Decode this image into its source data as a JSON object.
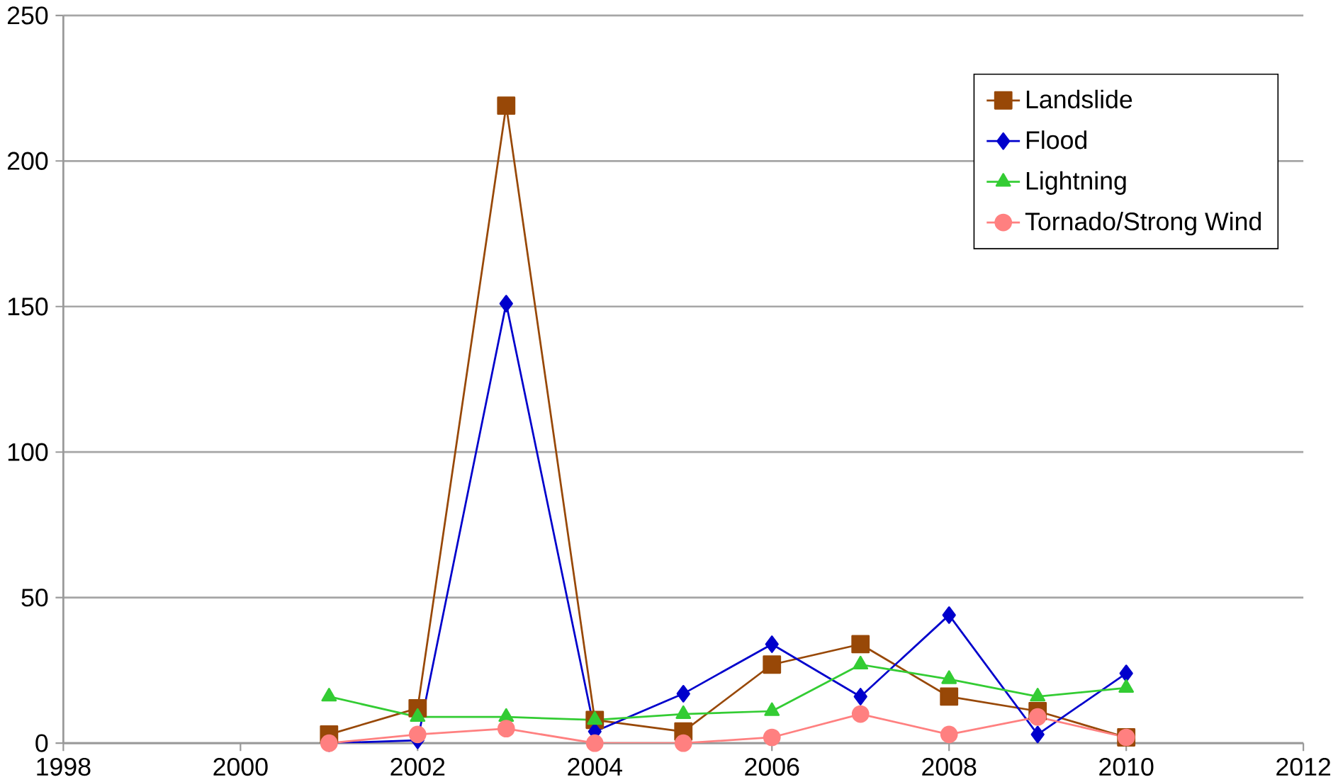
{
  "chart_data": {
    "type": "line",
    "x": [
      2001,
      2002,
      2003,
      2004,
      2005,
      2006,
      2007,
      2008,
      2009,
      2010
    ],
    "series": [
      {
        "name": "Landslide",
        "color": "#984807",
        "marker": "square",
        "values": [
          3,
          12,
          219,
          8,
          4,
          27,
          34,
          16,
          11,
          2
        ]
      },
      {
        "name": "Flood",
        "color": "#0000cc",
        "marker": "diamond",
        "values": [
          0,
          1,
          151,
          4,
          17,
          34,
          16,
          44,
          3,
          24
        ]
      },
      {
        "name": "Lightning",
        "color": "#33cc33",
        "marker": "triangle",
        "values": [
          16,
          9,
          9,
          8,
          10,
          11,
          27,
          22,
          16,
          19
        ]
      },
      {
        "name": "Tornado/Strong Wind",
        "color": "#ff8080",
        "marker": "circle",
        "values": [
          0,
          3,
          5,
          0,
          0,
          2,
          10,
          3,
          9,
          2
        ]
      }
    ],
    "xlim": [
      1998,
      2012
    ],
    "xticks": [
      1998,
      2000,
      2002,
      2004,
      2006,
      2008,
      2010,
      2012
    ],
    "ylim": [
      0,
      250
    ],
    "yticks": [
      0,
      50,
      100,
      150,
      200,
      250
    ],
    "grid": "y",
    "legend": "top right"
  }
}
